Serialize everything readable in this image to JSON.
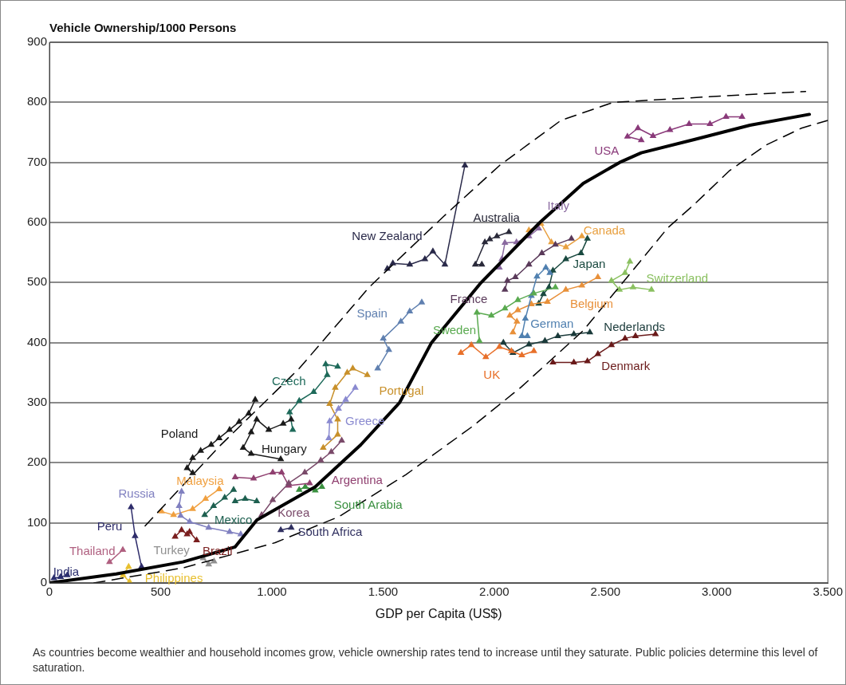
{
  "chart_data": {
    "type": "line",
    "ylabel": "Vehicle Ownership/1000 Persons",
    "xlabel": "GDP per Capita (US$)",
    "xlim": [
      0,
      3500
    ],
    "ylim": [
      0,
      900
    ],
    "xticks": [
      0,
      500,
      {
        "value": 1000,
        "label": "1.000"
      },
      {
        "value": 1500,
        "label": "1.500"
      },
      {
        "value": 2000,
        "label": "2.000"
      },
      {
        "value": 2500,
        "label": "2.500"
      },
      {
        "value": 3000,
        "label": "3.000"
      },
      {
        "value": 3500,
        "label": "3.500"
      }
    ],
    "yticks": [
      0,
      100,
      200,
      300,
      400,
      500,
      600,
      700,
      800,
      900
    ],
    "grid": "y",
    "legend": false,
    "marker": "triangle",
    "annotations": [
      "As countries become wealthier and household incomes grow, vehicle ownership rates tend to increase until they saturate. Public policies determine this level of saturation."
    ],
    "series": [
      {
        "color": "#000000",
        "marker": "none",
        "x": [
          0,
          300,
          600,
          835,
          933,
          1195,
          1400,
          1574,
          1718,
          1941,
          2205,
          2400,
          2564,
          2661,
          2899,
          3150,
          3417
        ],
        "values": [
          0,
          15,
          35,
          60,
          105,
          160,
          230,
          300,
          400,
          500,
          600,
          665,
          700,
          716,
          738,
          762,
          780
        ]
      },
      {
        "color": "#000000",
        "marker": "none",
        "line_style": "dashed",
        "x": [
          430,
          763,
          1123,
          1437,
          1772,
          2024,
          2300,
          2535,
          3000,
          3400
        ],
        "values": [
          95,
          227,
          357,
          492,
          610,
          695,
          770,
          800,
          810,
          818
        ]
      },
      {
        "color": "#000000",
        "marker": "none",
        "line_style": "dashed",
        "x": [
          200,
          600,
          1015,
          1300,
          1602,
          1900,
          2121,
          2400,
          2780,
          2899,
          3057,
          3223,
          3381,
          3500
        ],
        "values": [
          0,
          25,
          67,
          110,
          180,
          260,
          326,
          420,
          591,
          630,
          686,
          729,
          757,
          770
        ]
      },
      {
        "name": "India",
        "color": "#2b2e6e",
        "x": [
          20,
          50,
          80
        ],
        "values": [
          8,
          10,
          13
        ]
      },
      {
        "name": "Peru",
        "color": "#2f2d6b",
        "x": [
          414,
          385,
          367
        ],
        "values": [
          27,
          78,
          126
        ]
      },
      {
        "name": "Thailand",
        "color": "#b06080",
        "x": [
          270,
          330
        ],
        "values": [
          35,
          55
        ]
      },
      {
        "name": "Philippines",
        "color": "#e8c030",
        "x": [
          356,
          331,
          360
        ],
        "values": [
          27,
          13,
          2
        ]
      },
      {
        "name": "Turkey",
        "color": "#909090",
        "x": [
          691,
          716,
          740
        ],
        "values": [
          41,
          31,
          36
        ]
      },
      {
        "name": "Brazil",
        "color": "#7a1e1e",
        "x": [
          565,
          594,
          619,
          630,
          662
        ],
        "values": [
          77,
          88,
          81,
          85,
          71
        ]
      },
      {
        "name": "Russia",
        "color": "#8080c0",
        "x": [
          860,
          810,
          716,
          630,
          590,
          583,
          594
        ],
        "values": [
          81,
          85,
          92,
          102,
          112,
          128,
          152
        ]
      },
      {
        "name": "Malaysia",
        "color": "#f0a040",
        "x": [
          504,
          558,
          644,
          702,
          763
        ],
        "values": [
          119,
          113,
          123,
          140,
          156
        ]
      },
      {
        "name": "Mexico",
        "color": "#1e6050",
        "x": [
          698,
          738,
          788,
          828,
          831,
          835,
          880,
          932
        ],
        "values": [
          113,
          128,
          142,
          155,
          null,
          136,
          140,
          136
        ]
      },
      {
        "name": "South Africa",
        "color": "#303060",
        "x": [
          1040,
          1087
        ],
        "values": [
          88,
          92
        ]
      },
      {
        "name": "Korea",
        "color": "#7a4a6a",
        "x": [
          954,
          1004,
          1076,
          1148,
          1220,
          1267,
          1314
        ],
        "values": [
          113,
          138,
          166,
          184,
          204,
          218,
          237
        ]
      },
      {
        "name": "Argentina",
        "color": "#904070",
        "x": [
          835,
          918,
          1004,
          1044,
          1076,
          1170
        ],
        "values": [
          176,
          174,
          184,
          184,
          162,
          166
        ]
      },
      {
        "name": "South Arabia",
        "color": "#3a9040",
        "x": [
          1123,
          1150,
          1195,
          1225
        ],
        "values": [
          155,
          160,
          154,
          160
        ]
      },
      {
        "name": "Poland",
        "color": "#1a1a1a",
        "x": [
          644,
          619,
          644,
          680,
          727,
          763,
          810,
          853,
          896,
          925
        ],
        "values": [
          183,
          191,
          208,
          220,
          230,
          241,
          255,
          268,
          282,
          305
        ]
      },
      {
        "name": "Hungary",
        "color": "#1a1a1a",
        "x": [
          1040,
          907,
          871,
          907,
          932,
          986,
          1051,
          1087
        ],
        "values": [
          206,
          215,
          225,
          251,
          272,
          255,
          265,
          272
        ]
      },
      {
        "name": "Czech",
        "color": "#1e6a5a",
        "x": [
          1094,
          1080,
          1123,
          1188,
          1249,
          1242,
          1296
        ],
        "values": [
          255,
          284,
          303,
          318,
          346,
          364,
          360
        ]
      },
      {
        "name": "Greece",
        "color": "#8a8ad0",
        "x": [
          1256,
          1260,
          1300,
          1332,
          1375
        ],
        "values": [
          241,
          269,
          290,
          305,
          325
        ]
      },
      {
        "name": "Portugal",
        "color": "#c8902a",
        "x": [
          1231,
          1296,
          1296,
          1260,
          1285,
          1339,
          1364,
          1429
        ],
        "values": [
          225,
          247,
          272,
          298,
          325,
          350,
          357,
          346
        ]
      },
      {
        "name": "Spain",
        "color": "#6080b0",
        "x": [
          1476,
          1526,
          1501,
          1580,
          1620,
          1674
        ],
        "values": [
          357,
          388,
          407,
          435,
          452,
          467
        ]
      },
      {
        "name": "New Zealand",
        "color": "#2a2a4a",
        "x": [
          1519,
          1544,
          1620,
          1688,
          1724,
          1778,
          1868
        ],
        "values": [
          523,
          532,
          530,
          539,
          552,
          530,
          695
        ]
      },
      {
        "name": "Australia",
        "color": "#2a2a3a",
        "x": [
          1944,
          1915,
          1958,
          1980,
          2012,
          2066
        ],
        "values": [
          530,
          530,
          567,
          572,
          577,
          584
        ]
      },
      {
        "name": "Italy",
        "color": "#8a6aa0",
        "x": [
          2023,
          2034,
          2048,
          2100,
          2156,
          2200
        ],
        "values": [
          525,
          539,
          566,
          567,
          577,
          590
        ]
      },
      {
        "name": "France",
        "color": "#5a3a5a",
        "x": [
          2048,
          2059,
          2095,
          2156,
          2214,
          2275,
          2347
        ],
        "values": [
          488,
          503,
          509,
          530,
          549,
          563,
          573
        ]
      },
      {
        "name": "Sweden",
        "color": "#5aaa50",
        "x": [
          1933,
          1922,
          1987,
          2048,
          2106,
          2178,
          2275
        ],
        "values": [
          403,
          450,
          445,
          457,
          471,
          482,
          492
        ]
      },
      {
        "name": "German",
        "color": "#5080b0",
        "x": [
          2149,
          2124,
          2140,
          2167,
          2192,
          2232,
          2250
        ],
        "values": [
          411,
          411,
          440,
          478,
          510,
          525,
          516
        ]
      },
      {
        "name": "UK",
        "color": "#e8702a",
        "x": [
          1850,
          1897,
          1962,
          2023,
          2077,
          2124,
          2178
        ],
        "values": [
          383,
          396,
          376,
          393,
          386,
          379,
          386
        ]
      },
      {
        "name": "Belgium",
        "color": "#e8903a",
        "x": [
          2084,
          2102,
          2070,
          2106,
          2167,
          2239,
          2322,
          2394,
          2466
        ],
        "values": [
          417,
          435,
          445,
          454,
          464,
          468,
          488,
          495,
          509
        ]
      },
      {
        "name": "Canada",
        "color": "#e8a040",
        "x": [
          2156,
          2210,
          2257,
          2322,
          2394
        ],
        "values": [
          587,
          598,
          567,
          559,
          577
        ]
      },
      {
        "name": "Japan",
        "color": "#1a4a40",
        "x": [
          2419,
          2390,
          2322,
          2264,
          2246,
          2221,
          2200
        ],
        "values": [
          573,
          549,
          539,
          520,
          492,
          481,
          465
        ]
      },
      {
        "name": "Switzerland",
        "color": "#8ac060",
        "x": [
          2707,
          2624,
          2563,
          2527,
          2588,
          2610
        ],
        "values": [
          488,
          492,
          488,
          503,
          516,
          535
        ]
      },
      {
        "name": "Nederlands",
        "color": "#1a3a3a",
        "x": [
          2041,
          2084,
          2156,
          2228,
          2286,
          2358,
          2430
        ],
        "values": [
          400,
          383,
          397,
          403,
          411,
          414,
          417
        ]
      },
      {
        "name": "Denmark",
        "color": "#6a1a1a",
        "x": [
          2264,
          2358,
          2419,
          2466,
          2527,
          2588,
          2635,
          2725
        ],
        "values": [
          367,
          367,
          369,
          381,
          396,
          407,
          411,
          414
        ]
      },
      {
        "name": "USA",
        "color": "#8a3a7a",
        "x": [
          2661,
          2599,
          2646,
          2714,
          2790,
          2876,
          2970,
          3042,
          3114
        ],
        "values": [
          737,
          743,
          757,
          744,
          754,
          764,
          764,
          776,
          776
        ]
      }
    ]
  }
}
